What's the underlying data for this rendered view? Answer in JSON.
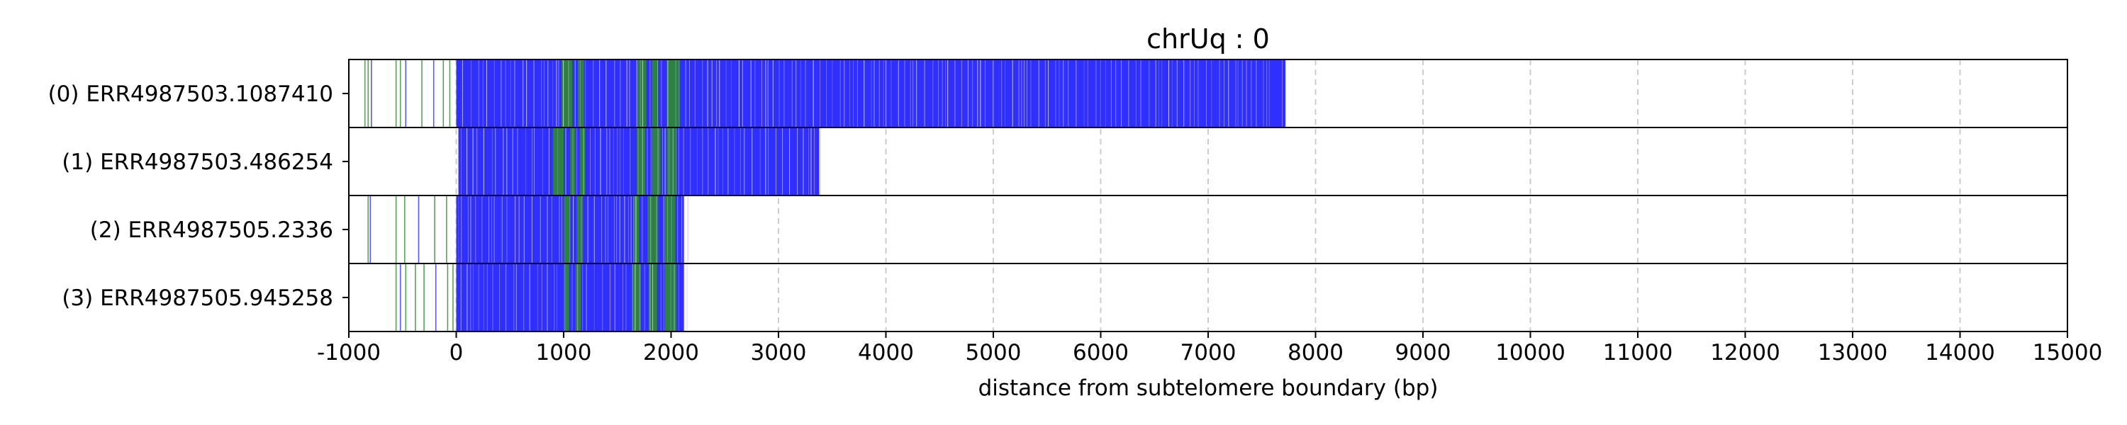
{
  "chart_data": {
    "type": "track",
    "title": "chrUq : 0",
    "xlabel": "distance from subtelomere boundary (bp)",
    "ylabel": "",
    "xlim": [
      -1000,
      15000
    ],
    "xticks": [
      "-1000",
      "0",
      "1000",
      "2000",
      "3000",
      "4000",
      "5000",
      "6000",
      "7000",
      "8000",
      "9000",
      "10000",
      "11000",
      "12000",
      "13000",
      "14000",
      "15000"
    ],
    "grid": "x dashed",
    "colors": {
      "repeat_blue": "#2f2fff",
      "repeat_green": "#2e8b2e",
      "grid": "#cccccc"
    },
    "reads": [
      {
        "label": "(0) ERR4987503.1087410",
        "read_start": -850,
        "dense_start": 0,
        "read_end": 7720,
        "sparse_marks": [
          {
            "x": -850,
            "c": "g"
          },
          {
            "x": -820,
            "c": "g"
          },
          {
            "x": -790,
            "c": "b"
          },
          {
            "x": -560,
            "c": "g"
          },
          {
            "x": -520,
            "c": "g"
          },
          {
            "x": -470,
            "c": "b"
          },
          {
            "x": -320,
            "c": "g"
          },
          {
            "x": -210,
            "c": "b"
          },
          {
            "x": -120,
            "c": "g"
          },
          {
            "x": -60,
            "c": "g"
          }
        ],
        "green_bands": [
          [
            980,
            1080
          ],
          [
            1130,
            1190
          ],
          [
            1690,
            1770
          ],
          [
            1820,
            1880
          ],
          [
            1960,
            2080
          ]
        ],
        "end_marks": [
          7560,
          7600,
          7640,
          7700
        ]
      },
      {
        "label": "(1) ERR4987503.486254",
        "read_start": 20,
        "dense_start": 20,
        "read_end": 3380,
        "sparse_marks": [],
        "green_bands": [
          [
            900,
            1000
          ],
          [
            1060,
            1110
          ],
          [
            1150,
            1200
          ],
          [
            1680,
            1760
          ],
          [
            1820,
            1900
          ],
          [
            1960,
            2050
          ]
        ],
        "end_marks": []
      },
      {
        "label": "(2) ERR4987505.2336",
        "read_start": -820,
        "dense_start": 0,
        "read_end": 2120,
        "sparse_marks": [
          {
            "x": -820,
            "c": "g"
          },
          {
            "x": -800,
            "c": "b"
          },
          {
            "x": -560,
            "c": "g"
          },
          {
            "x": -480,
            "c": "g"
          },
          {
            "x": -350,
            "c": "b"
          },
          {
            "x": -200,
            "c": "g"
          },
          {
            "x": -90,
            "c": "g"
          }
        ],
        "green_bands": [
          [
            1000,
            1060
          ],
          [
            1120,
            1180
          ],
          [
            1650,
            1700
          ],
          [
            1780,
            1880
          ],
          [
            1940,
            2040
          ]
        ],
        "end_marks": []
      },
      {
        "label": "(3) ERR4987505.945258",
        "read_start": -560,
        "dense_start": 0,
        "read_end": 2120,
        "sparse_marks": [
          {
            "x": -560,
            "c": "g"
          },
          {
            "x": -520,
            "c": "b"
          },
          {
            "x": -470,
            "c": "g"
          },
          {
            "x": -380,
            "c": "g"
          },
          {
            "x": -300,
            "c": "g"
          },
          {
            "x": -190,
            "c": "b"
          },
          {
            "x": -80,
            "c": "g"
          },
          {
            "x": -30,
            "c": "g"
          }
        ],
        "green_bands": [
          [
            1000,
            1050
          ],
          [
            1110,
            1160
          ],
          [
            1640,
            1720
          ],
          [
            1790,
            1870
          ],
          [
            1940,
            2050
          ]
        ],
        "end_marks": []
      }
    ]
  }
}
